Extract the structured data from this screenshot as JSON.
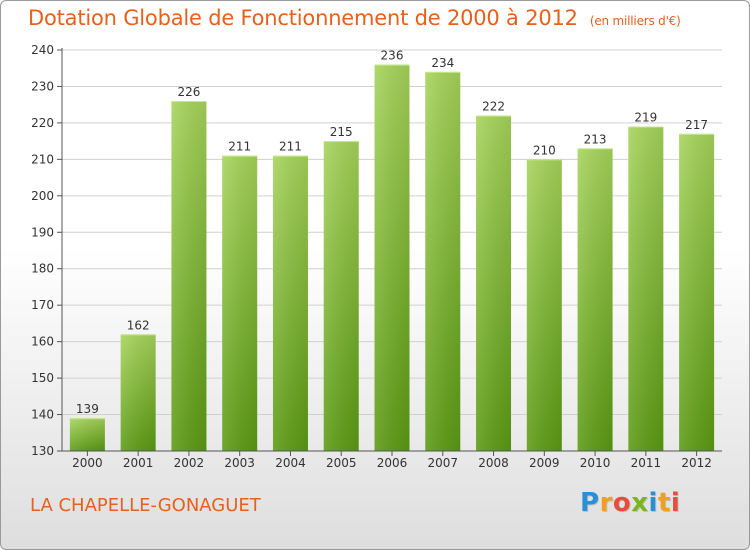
{
  "title": "Dotation Globale de Fonctionnement de 2000 à 2012",
  "subtitle": "(en milliers d'€)",
  "commune": "LA CHAPELLE-GONAGUET",
  "logo": {
    "letters": [
      "P",
      "r",
      "o",
      "x",
      "i",
      "t",
      "i"
    ],
    "colors": [
      "#2a8fd4",
      "#f0a020",
      "#e84c3c",
      "#7ab51d",
      "#2a8fd4",
      "#f0a020",
      "#e84c3c"
    ]
  },
  "colors": {
    "bar_top": "#a6d45a",
    "bar_bottom": "#5a9a12",
    "title": "#e8601c"
  },
  "chart_data": {
    "type": "bar",
    "title": "Dotation Globale de Fonctionnement de 2000 à 2012",
    "subtitle": "(en milliers d'€)",
    "categories": [
      "2000",
      "2001",
      "2002",
      "2003",
      "2004",
      "2005",
      "2006",
      "2007",
      "2008",
      "2009",
      "2010",
      "2011",
      "2012"
    ],
    "values": [
      139,
      162,
      226,
      211,
      211,
      215,
      236,
      234,
      222,
      210,
      213,
      219,
      217
    ],
    "ylim": [
      130,
      240
    ],
    "yticks": [
      130,
      140,
      150,
      160,
      170,
      180,
      190,
      200,
      210,
      220,
      230,
      240
    ],
    "grid": true
  }
}
